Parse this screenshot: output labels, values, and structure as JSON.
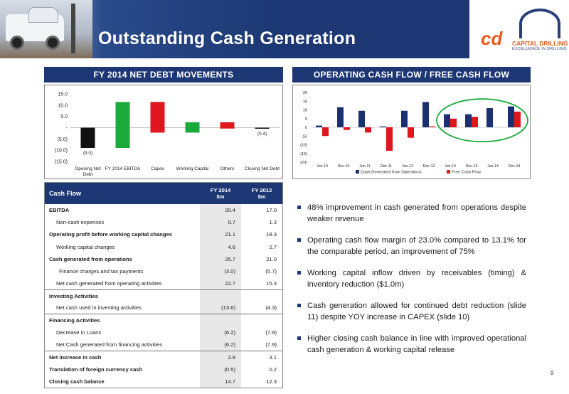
{
  "header": {
    "title": "Outstanding Cash Generation",
    "logo": {
      "initials": "cd",
      "name": "CAPITAL DRILLING",
      "tagline": "EXCELLENCE IN DRILLING"
    },
    "colors": {
      "navy": "#1c3773",
      "orange": "#e85a1a"
    }
  },
  "left_panel": {
    "title": "FY 2014 NET DEBT MOVEMENTS"
  },
  "right_panel": {
    "title": "OPERATING CASH FLOW / FREE CASH FLOW"
  },
  "chart_data": [
    {
      "type": "bar",
      "subtype": "waterfall",
      "categories": [
        "Opening Net Debt",
        "FY 2014 EBITDA",
        "Capex",
        "Working Capital",
        "Others",
        "Closing Net Debt"
      ],
      "bars": [
        {
          "label": "(9.0)",
          "start": 0,
          "end": -9.0,
          "color": "#111111"
        },
        {
          "start": -9.0,
          "end": 11.4,
          "color": "#1aaa3c"
        },
        {
          "start": 11.4,
          "end": -2.2,
          "color": "#e0161e"
        },
        {
          "start": -2.2,
          "end": 2.4,
          "color": "#1aaa3c"
        },
        {
          "start": 2.4,
          "end": -0.4,
          "color": "#e0161e"
        },
        {
          "label": "(0.4)",
          "start": 0,
          "end": -0.4,
          "color": "#111111"
        }
      ],
      "ylim": [
        -15,
        15
      ],
      "yticks": [
        15,
        10,
        5,
        0,
        -5,
        -10,
        -15
      ],
      "ytick_labels": [
        "15.0",
        "10.0",
        "5.0",
        "-",
        "(5.0)",
        "(10.0)",
        "(15.0)"
      ]
    },
    {
      "type": "bar",
      "categories": [
        "Jun-10",
        "Dec-10",
        "Jun-11",
        "Dec-11",
        "Jun-12",
        "Dec-12",
        "Jun-13",
        "Dec-13",
        "Jun-14",
        "Dec-14"
      ],
      "series": [
        {
          "name": "Cash Generated from Operations",
          "color": "#1c2f6e",
          "values": [
            1,
            11.5,
            9.5,
            0.5,
            9.5,
            14.5,
            7.5,
            7.5,
            11,
            12
          ]
        },
        {
          "name": "Free Cash Flow",
          "color": "#e0161e",
          "values": [
            -5,
            -1.5,
            -3,
            -13.5,
            -6,
            0.5,
            5,
            6,
            null,
            9
          ]
        }
      ],
      "ylim": [
        -20,
        20
      ],
      "yticks": [
        20,
        15,
        10,
        5,
        0,
        -5,
        -10,
        -15,
        -20
      ],
      "ytick_labels": [
        "20",
        "15",
        "10",
        "5",
        "0",
        "(5)",
        "(10)",
        "(15)",
        "(20)"
      ],
      "highlight": {
        "from": "Jun-13",
        "to": "Dec-14",
        "color": "#1aaa3c"
      },
      "legend": "bottom"
    }
  ],
  "table": {
    "headers": {
      "label": "Cash Flow",
      "fy14": "FY 2014\n$m",
      "fy13": "FY 2013\n$m"
    },
    "rows": [
      {
        "label": "EBITDA",
        "fy14": "20.4",
        "fy13": "17.0",
        "style": "bold"
      },
      {
        "label": "Non-cash expenses",
        "fy14": "0.7",
        "fy13": "1.3",
        "style": "ind1"
      },
      {
        "label": "Operating profit before working capital changes",
        "fy14": "21.1",
        "fy13": "18.3",
        "style": "bold"
      },
      {
        "label": "Working capital changes",
        "fy14": "4.6",
        "fy13": "2.7",
        "style": "ind1"
      },
      {
        "label": "Cash generated from operations",
        "fy14": "25.7",
        "fy13": "21.0",
        "style": "bold"
      },
      {
        "label": "Finance charges and tax payments",
        "fy14": "(3.0)",
        "fy13": "(5.7)",
        "style": "ind2"
      },
      {
        "label": "Net cash generated from operating activities",
        "fy14": "22.7",
        "fy13": "15.3",
        "style": "ind1"
      },
      {
        "label": "Investing Activities",
        "fy14": "",
        "fy13": "",
        "style": "bold sep"
      },
      {
        "label": "Net cash used in investing activities",
        "fy14": "(13.6)",
        "fy13": "(4.3)",
        "style": "ind1"
      },
      {
        "label": "Financing Activities",
        "fy14": "",
        "fy13": "",
        "style": "bold sep"
      },
      {
        "label": "Decrease in Loans",
        "fy14": "(6.2)",
        "fy13": "(7.9)",
        "style": "ind1"
      },
      {
        "label": "Net Cash generated from financing activities",
        "fy14": "(6.2)",
        "fy13": "(7.9)",
        "style": "ind1"
      },
      {
        "label": "Net increase in cash",
        "fy14": "2.8",
        "fy13": "3.1",
        "style": "bold sep"
      },
      {
        "label": "Translation of foreign currency cash",
        "fy14": "(0.5)",
        "fy13": "0.2",
        "style": "bold"
      },
      {
        "label": "Closing cash balance",
        "fy14": "14.7",
        "fy13": "12.3",
        "style": "bold"
      }
    ]
  },
  "bullets": [
    "48% improvement in cash generated from operations despite weaker revenue",
    "Operating cash flow margin of 23.0% compared to 13.1% for the comparable period, an improvement of 75%",
    "Working capital inflow driven by receivables (timing) & inventory reduction ($1.0m)",
    "Cash generation allowed for continued debt reduction (slide 11) despite YOY increase in CAPEX (slide 10)",
    "Higher closing cash balance in line with improved operational cash generation & working capital release"
  ],
  "page_number": "9"
}
